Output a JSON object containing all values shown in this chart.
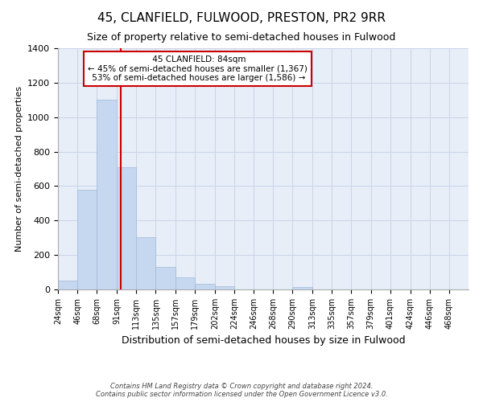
{
  "title": "45, CLANFIELD, FULWOOD, PRESTON, PR2 9RR",
  "subtitle": "Size of property relative to semi-detached houses in Fulwood",
  "xlabel": "Distribution of semi-detached houses by size in Fulwood",
  "ylabel": "Number of semi-detached properties",
  "footnote": "Contains HM Land Registry data © Crown copyright and database right 2024.\nContains public sector information licensed under the Open Government Licence v3.0.",
  "bar_labels": [
    "24sqm",
    "46sqm",
    "68sqm",
    "91sqm",
    "113sqm",
    "135sqm",
    "157sqm",
    "179sqm",
    "202sqm",
    "224sqm",
    "246sqm",
    "268sqm",
    "290sqm",
    "313sqm",
    "335sqm",
    "357sqm",
    "379sqm",
    "401sqm",
    "424sqm",
    "446sqm",
    "468sqm"
  ],
  "bar_values": [
    50,
    580,
    1100,
    710,
    305,
    130,
    70,
    35,
    20,
    0,
    0,
    0,
    15,
    0,
    0,
    0,
    0,
    0,
    0,
    0,
    0
  ],
  "bar_color": "#c5d8f0",
  "bar_edgecolor": "#a0b8d8",
  "property_sqm": 84,
  "property_label": "45 CLANFIELD: 84sqm",
  "pct_smaller": 45,
  "n_smaller": 1367,
  "pct_larger": 53,
  "n_larger": 1586,
  "bin_edges": [
    13,
    35,
    57,
    80,
    102,
    124,
    146,
    168,
    191,
    213,
    235,
    257,
    279,
    302,
    324,
    346,
    368,
    390,
    413,
    435,
    457,
    479
  ],
  "ylim": [
    0,
    1400
  ],
  "yticks": [
    0,
    200,
    400,
    600,
    800,
    1000,
    1200,
    1400
  ],
  "background_color": "#ffffff",
  "axes_background": "#e8eef8",
  "grid_color": "#c8d4e8",
  "annotation_box_facecolor": "#ffffff",
  "annotation_box_edgecolor": "#cc0000",
  "vline_color": "#cc0000",
  "vline_x": 84
}
